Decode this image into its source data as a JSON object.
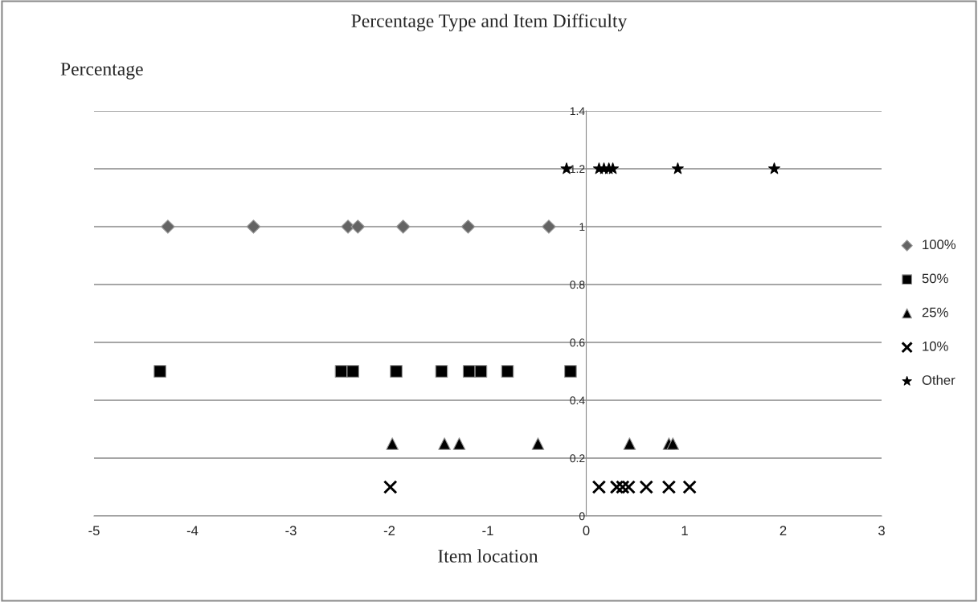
{
  "chart_data": {
    "type": "scatter",
    "title": "Percentage Type and Item Difficulty",
    "ylabel": "Percentage",
    "xlabel": "Item location",
    "xlim": [
      -5,
      3
    ],
    "xticks": [
      -5,
      -4,
      -3,
      -2,
      -1,
      0,
      1,
      2,
      3
    ],
    "ylim": [
      0,
      1.4
    ],
    "yticks": [
      0,
      0.2,
      0.4,
      0.6,
      0.8,
      1,
      1.2,
      1.4
    ],
    "grid": "y",
    "legend": "right",
    "series": [
      {
        "name": "100%",
        "color": "#646464",
        "marker": "diamond",
        "x": [
          -4.25,
          -3.38,
          -2.42,
          -2.32,
          -1.86,
          -1.2,
          -0.38
        ],
        "values": [
          1,
          1,
          1,
          1,
          1,
          1,
          1
        ]
      },
      {
        "name": "50%",
        "color": "#000000",
        "marker": "square",
        "x": [
          -4.33,
          -2.49,
          -2.37,
          -1.93,
          -1.47,
          -1.19,
          -1.07,
          -0.8,
          -0.16
        ],
        "values": [
          0.5,
          0.5,
          0.5,
          0.5,
          0.5,
          0.5,
          0.5,
          0.5,
          0.5
        ]
      },
      {
        "name": "25%",
        "color": "#000000",
        "marker": "triangle",
        "x": [
          -1.97,
          -1.44,
          -1.29,
          -0.49,
          0.44,
          0.84,
          0.88
        ],
        "values": [
          0.25,
          0.25,
          0.25,
          0.25,
          0.25,
          0.25,
          0.25
        ]
      },
      {
        "name": "10%",
        "color": "#000000",
        "marker": "cross",
        "x": [
          -1.99,
          0.13,
          0.31,
          0.37,
          0.43,
          0.61,
          0.84,
          1.05
        ],
        "values": [
          0.1,
          0.1,
          0.1,
          0.1,
          0.1,
          0.1,
          0.1,
          0.1
        ]
      },
      {
        "name": "Other",
        "color": "#000000",
        "marker": "star",
        "x": [
          -0.2,
          0.13,
          0.18,
          0.23,
          0.27,
          0.93,
          1.91
        ],
        "values": [
          1.2,
          1.2,
          1.2,
          1.2,
          1.2,
          1.2,
          1.2
        ]
      }
    ]
  }
}
